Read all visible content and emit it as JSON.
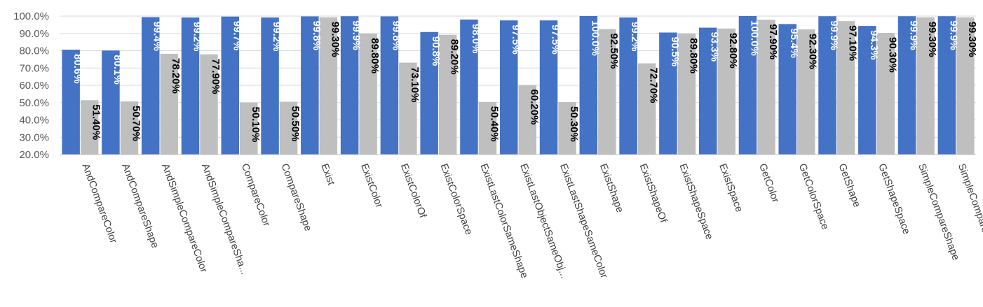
{
  "chart_data": {
    "type": "bar",
    "title": "",
    "xlabel": "",
    "ylabel": "",
    "ylim": [
      20,
      100
    ],
    "yticks": [
      "20.0%",
      "30.0%",
      "40.0%",
      "50.0%",
      "60.0%",
      "70.0%",
      "80.0%",
      "90.0%",
      "100.0%"
    ],
    "ytick_values": [
      20,
      30,
      40,
      50,
      60,
      70,
      80,
      90,
      100
    ],
    "grid": true,
    "legend": "none",
    "categories": [
      "AndCompareColor",
      "AndCompareShape",
      "AndSimpleCompareColor",
      "AndSimpleCompareSha...",
      "CompareColor",
      "CompareShape",
      "Exist",
      "ExistColor",
      "ExistColorOf",
      "ExistColorSpace",
      "ExistLastColorSameShape",
      "ExistLastObjectSameObj...",
      "ExistLastShapeSameColor",
      "ExistShape",
      "ExistShapeOf",
      "ExistShapeSpace",
      "ExistSpace",
      "GetColor",
      "GetColorSpace",
      "GetShape",
      "GetShapeSpace",
      "SimpleCompareShape",
      "SimpleCompareColor"
    ],
    "series": [
      {
        "color": "#4472c4",
        "label_color": "#ffffff",
        "values": [
          80.6,
          80.1,
          99.4,
          99.2,
          99.7,
          99.2,
          99.8,
          99.9,
          99.8,
          90.8,
          98.0,
          97.5,
          97.5,
          100.0,
          99.2,
          90.5,
          93.3,
          100.0,
          95.4,
          99.9,
          94.3,
          99.9,
          99.9
        ],
        "labels": [
          "80.6%",
          "80.1%",
          "99.4%",
          "99.2%",
          "99.7%",
          "99.2%",
          "99.8%",
          "99.9%",
          "99.8%",
          "90.8%",
          "98.0%",
          "97.5%",
          "97.5%",
          "100.0%",
          "99.2%",
          "90.5%",
          "93.3%",
          "100.0%",
          "95.4%",
          "99.9%",
          "94.3%",
          "99.9%",
          "99.9%"
        ]
      },
      {
        "color": "#bfbfbf",
        "label_color": "#000000",
        "values": [
          51.4,
          50.7,
          78.2,
          77.9,
          50.1,
          50.5,
          99.3,
          89.8,
          73.1,
          89.2,
          50.4,
          60.2,
          50.3,
          92.5,
          72.7,
          89.8,
          92.8,
          97.9,
          92.3,
          97.1,
          90.3,
          99.3,
          99.3
        ],
        "labels": [
          "51.40%",
          "50.70%",
          "78.20%",
          "77.90%",
          "50.10%",
          "50.50%",
          "99.30%",
          "89.80%",
          "73.10%",
          "89.20%",
          "50.40%",
          "60.20%",
          "50.30%",
          "92.50%",
          "72.70%",
          "89.80%",
          "92.80%",
          "97.90%",
          "92.30%",
          "97.10%",
          "90.30%",
          "99.30%",
          "99.30%"
        ]
      }
    ]
  }
}
